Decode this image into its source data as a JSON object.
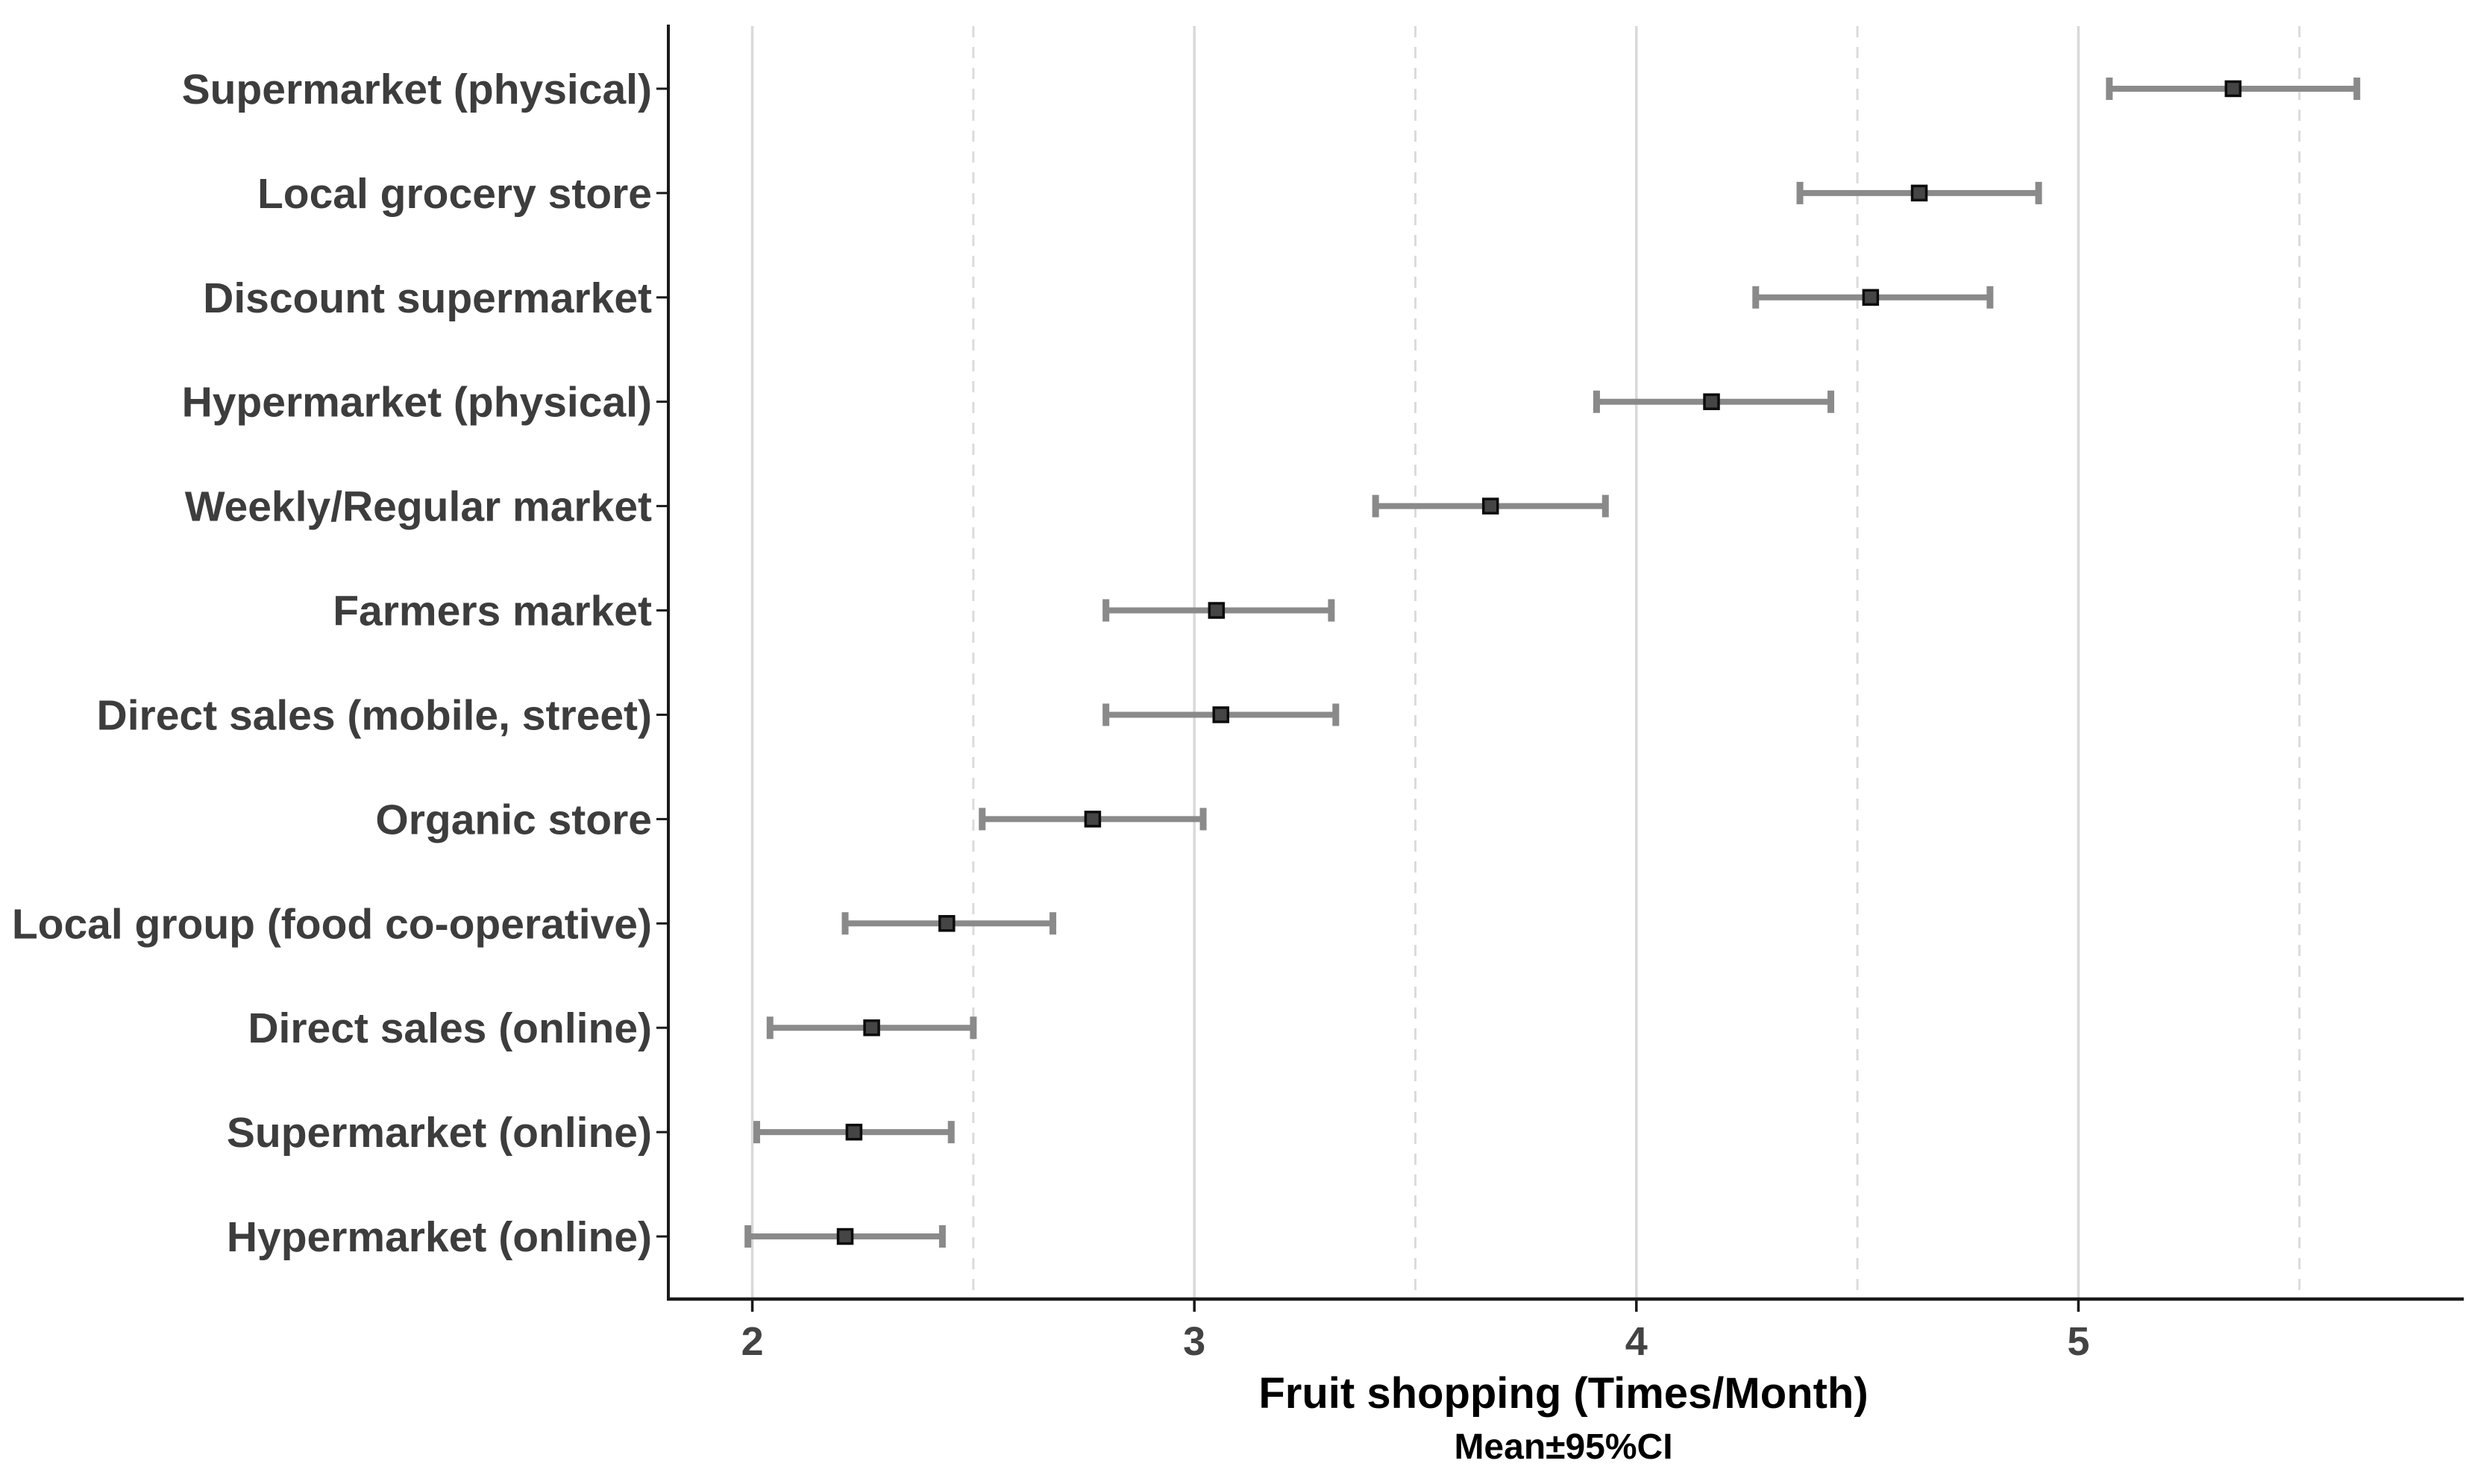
{
  "page": {
    "background": "#ffffff"
  },
  "chart_data": {
    "type": "scatter",
    "subtype": "dot-with-95ci-error-bars",
    "orientation": "horizontal",
    "title": "",
    "xlabel": "Fruit shopping (Times/Month)",
    "xlabel_sub": "Mean±95%CI",
    "ylabel": "",
    "legend_position": "none",
    "grid": {
      "major_x": "solid",
      "minor_x": "dashed",
      "major_y": "none"
    },
    "xlim": [
      1.81,
      5.86
    ],
    "xticks": [
      2,
      3,
      4,
      5
    ],
    "xticks_minor": [
      2.5,
      3.5,
      4.5,
      5.5
    ],
    "categories": [
      "Supermarket (physical)",
      "Local grocery store",
      "Discount supermarket",
      "Hypermarket (physical)",
      "Weekly/Regular market",
      "Farmers market",
      "Direct sales (mobile, street)",
      "Organic store",
      "Local group (food co-operative)",
      "Direct sales (online)",
      "Supermarket (online)",
      "Hypermarket (online)"
    ],
    "series": [
      {
        "name": "Mean±95%CI",
        "means": [
          5.35,
          4.64,
          4.53,
          4.17,
          3.67,
          3.05,
          3.06,
          2.77,
          2.44,
          2.27,
          2.23,
          2.21
        ],
        "ci_low": [
          5.07,
          4.37,
          4.27,
          3.91,
          3.41,
          2.8,
          2.8,
          2.52,
          2.21,
          2.04,
          2.01,
          1.99
        ],
        "ci_high": [
          5.63,
          4.91,
          4.8,
          4.44,
          3.93,
          3.31,
          3.32,
          3.02,
          2.68,
          2.5,
          2.45,
          2.43
        ]
      }
    ],
    "marker": {
      "shape": "square",
      "fill": "#454545",
      "stroke": "#0c0c0c"
    },
    "colors": {
      "background": "#ffffff",
      "grid_major": "#d9d9d9",
      "grid_minor": "#dbdbdb",
      "error_bar": "#8a8a8a",
      "axis": "#1a1a1a",
      "tick_label": "#434343",
      "category_label": "#3d3d3d",
      "axis_title": "#000000"
    }
  }
}
